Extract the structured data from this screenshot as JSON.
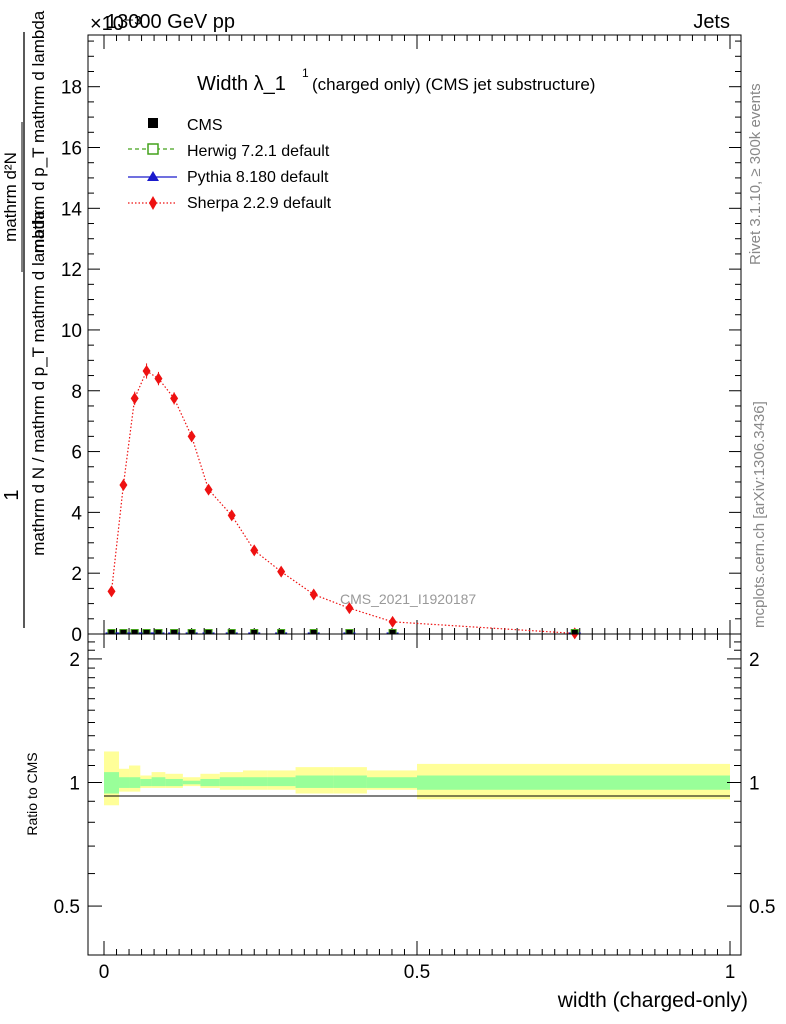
{
  "header": {
    "left": "13000 GeV pp",
    "right": "Jets",
    "exponent": "×10⁻³"
  },
  "side_labels": {
    "rivet": "Rivet 3.1.10, ≥ 300k events",
    "mcplots": "mcplots.cern.ch [arXiv:1306.3436]"
  },
  "chart_data": [
    {
      "type": "scatter",
      "title": "Width λ_1",
      "title_superscript": "1",
      "subtitle": "(charged only) (CMS jet substructure)",
      "watermark": "CMS_2021_I1920187",
      "ylabel_numerator": "1",
      "ylabel_denominator": "mathrm d N / mathrm d p_T mathrm d lambda",
      "ylabel_inner": "mathrm d²N / mathrm d p_T mathrm d lambda",
      "ylabel_inner_numerator": "mathrm d²N",
      "ylabel_inner_denominator": "mathrm d p_T mathrm d lambda",
      "xlim": [
        0,
        1
      ],
      "ylim": [
        0,
        19.7
      ],
      "yticks": [
        0,
        2,
        4,
        6,
        8,
        10,
        12,
        14,
        16,
        18
      ],
      "legend_position": "top-left",
      "legend": [
        {
          "label": "CMS",
          "marker": "square",
          "color": "#000000"
        },
        {
          "label": "Herwig 7.2.1 default",
          "marker": "open-square",
          "color": "#44a21c"
        },
        {
          "label": "Pythia 8.180 default",
          "marker": "triangle",
          "color": "#1a1acc"
        },
        {
          "label": "Sherpa 2.2.9 default",
          "marker": "diamond",
          "color": "#ee1111"
        }
      ],
      "series": [
        {
          "name": "Sherpa 2.2.9 default",
          "color": "#ee1111",
          "x": [
            0.012,
            0.031,
            0.049,
            0.068,
            0.087,
            0.112,
            0.14,
            0.167,
            0.204,
            0.24,
            0.283,
            0.335,
            0.392,
            0.461,
            0.752
          ],
          "y": [
            1.4,
            4.9,
            7.75,
            8.65,
            8.4,
            7.75,
            6.5,
            4.75,
            3.9,
            2.75,
            2.05,
            1.3,
            0.85,
            0.4,
            0.02
          ],
          "yerr": [
            0.1,
            0.18,
            0.22,
            0.25,
            0.22,
            0.2,
            0.18,
            0.12,
            0.1,
            0.08,
            0.06,
            0.05,
            0.04,
            0.03,
            0.01
          ]
        },
        {
          "name": "CMS",
          "color": "#000000",
          "x": [
            0.012,
            0.031,
            0.049,
            0.068,
            0.087,
            0.112,
            0.14,
            0.167,
            0.204,
            0.24,
            0.283,
            0.335,
            0.392,
            0.461,
            0.752
          ],
          "y": [
            0,
            0,
            0,
            0,
            0,
            0,
            0,
            0,
            0,
            0,
            0,
            0,
            0,
            0,
            0
          ]
        }
      ]
    },
    {
      "type": "area",
      "ylabel": "Ratio to CMS",
      "xlabel": "width (charged-only)",
      "xlim": [
        0,
        1
      ],
      "ylim": [
        0.38,
        2.3
      ],
      "log_y": true,
      "xticks": [
        0,
        0.5,
        1
      ],
      "xtick_labels": [
        "0",
        "0.5",
        "1"
      ],
      "yticks": [
        0.5,
        1,
        2
      ],
      "ytick_labels": [
        "0.5",
        "1",
        "2"
      ],
      "band_colors": {
        "outer": "#ffff99",
        "inner": "#99ff99",
        "line": "#000000"
      },
      "bins": [
        {
          "x0": 0.0,
          "x1": 0.024,
          "inner": [
            0.94,
            1.06
          ],
          "outer": [
            0.88,
            1.19
          ]
        },
        {
          "x0": 0.024,
          "x1": 0.04,
          "inner": [
            0.97,
            1.03
          ],
          "outer": [
            0.95,
            1.08
          ]
        },
        {
          "x0": 0.04,
          "x1": 0.058,
          "inner": [
            0.97,
            1.03
          ],
          "outer": [
            0.95,
            1.1
          ]
        },
        {
          "x0": 0.058,
          "x1": 0.076,
          "inner": [
            0.98,
            1.02
          ],
          "outer": [
            0.97,
            1.04
          ]
        },
        {
          "x0": 0.076,
          "x1": 0.098,
          "inner": [
            0.98,
            1.03
          ],
          "outer": [
            0.97,
            1.06
          ]
        },
        {
          "x0": 0.098,
          "x1": 0.126,
          "inner": [
            0.98,
            1.02
          ],
          "outer": [
            0.97,
            1.05
          ]
        },
        {
          "x0": 0.126,
          "x1": 0.154,
          "inner": [
            0.99,
            1.01
          ],
          "outer": [
            0.98,
            1.03
          ]
        },
        {
          "x0": 0.154,
          "x1": 0.185,
          "inner": [
            0.98,
            1.02
          ],
          "outer": [
            0.97,
            1.05
          ]
        },
        {
          "x0": 0.185,
          "x1": 0.222,
          "inner": [
            0.98,
            1.03
          ],
          "outer": [
            0.96,
            1.06
          ]
        },
        {
          "x0": 0.222,
          "x1": 0.261,
          "inner": [
            0.98,
            1.03
          ],
          "outer": [
            0.96,
            1.07
          ]
        },
        {
          "x0": 0.261,
          "x1": 0.306,
          "inner": [
            0.98,
            1.03
          ],
          "outer": [
            0.96,
            1.07
          ]
        },
        {
          "x0": 0.306,
          "x1": 0.366,
          "inner": [
            0.97,
            1.04
          ],
          "outer": [
            0.94,
            1.09
          ]
        },
        {
          "x0": 0.366,
          "x1": 0.42,
          "inner": [
            0.97,
            1.04
          ],
          "outer": [
            0.94,
            1.09
          ]
        },
        {
          "x0": 0.42,
          "x1": 0.5,
          "inner": [
            0.97,
            1.03
          ],
          "outer": [
            0.96,
            1.07
          ]
        },
        {
          "x0": 0.5,
          "x1": 1.0,
          "inner": [
            0.96,
            1.04
          ],
          "outer": [
            0.91,
            1.11
          ]
        }
      ]
    }
  ]
}
